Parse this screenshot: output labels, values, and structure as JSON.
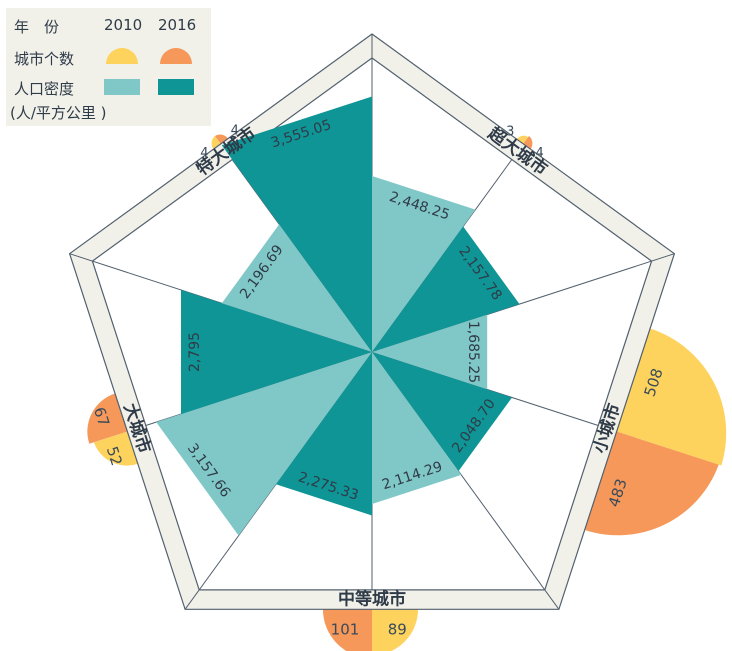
{
  "legend": {
    "year_label": "年　份",
    "year_2010": "2010",
    "year_2016": "2016",
    "city_count_label": "城市个数",
    "density_label_line1": "人口密度",
    "density_label_line2": "(人/平方公里 )"
  },
  "colors": {
    "light_teal": "#80c8c7",
    "dark_teal": "#0f9595",
    "yellow": "#fdd35d",
    "orange": "#f5985a",
    "frame": "#f1f1ea",
    "frame_stroke": "#52606e"
  },
  "chart_data": {
    "type": "radar",
    "years": [
      "2010",
      "2016"
    ],
    "series": [
      {
        "name": "城市个数",
        "unit": "",
        "values_by_category": [
          [
            3,
            4
          ],
          [
            508,
            483
          ],
          [
            89,
            101
          ],
          [
            52,
            67
          ],
          [
            4,
            4
          ]
        ]
      },
      {
        "name": "人口密度",
        "unit": "人/平方公里",
        "values_by_category": [
          [
            2448.25,
            2157.78
          ],
          [
            1685.25,
            2048.7
          ],
          [
            2114.29,
            2275.33
          ],
          [
            3157.66,
            2795
          ],
          [
            2196.69,
            3555.05
          ]
        ]
      }
    ],
    "categories": [
      {
        "name": "超大城市",
        "count_2010": "3",
        "count_2016": "4",
        "density_2010": 2448.25,
        "density_2016": 2157.78,
        "density_2010_label": "2,448.25",
        "density_2016_label": "2,157.78"
      },
      {
        "name": "小城市",
        "count_2010": "508",
        "count_2016": "483",
        "density_2010": 1685.25,
        "density_2016": 2048.7,
        "density_2010_label": "1,685.25",
        "density_2016_label": "2,048.70"
      },
      {
        "name": "中等城市",
        "count_2010": "89",
        "count_2016": "101",
        "density_2010": 2114.29,
        "density_2016": 2275.33,
        "density_2010_label": "2,114.29",
        "density_2016_label": "2,275.33"
      },
      {
        "name": "大城市",
        "count_2010": "52",
        "count_2016": "67",
        "density_2010": 3157.66,
        "density_2016": 2795,
        "density_2010_label": "3,157.66",
        "density_2016_label": "2,795"
      },
      {
        "name": "特大城市",
        "count_2010": "4",
        "count_2016": "4",
        "density_2010": 2196.69,
        "density_2016": 3555.05,
        "density_2010_label": "2,196.69",
        "density_2016_label": "3,555.05"
      }
    ]
  }
}
